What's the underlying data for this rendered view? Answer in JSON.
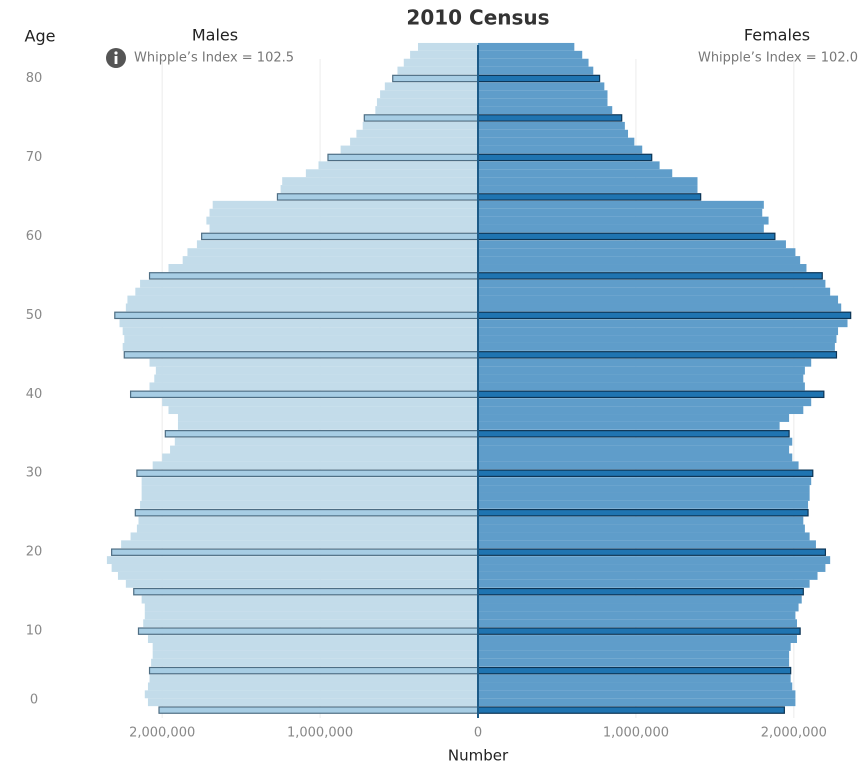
{
  "chart_data": {
    "type": "pyramid",
    "title": "2010 Census",
    "y_label": "Age",
    "x_label": "Number",
    "annotations": [
      "Whipple’s Index = 102.5",
      "Whipple’s Index = 102.0"
    ],
    "categories": [
      0,
      1,
      2,
      3,
      4,
      5,
      6,
      7,
      8,
      9,
      10,
      11,
      12,
      13,
      14,
      15,
      16,
      17,
      18,
      19,
      20,
      21,
      22,
      23,
      24,
      25,
      26,
      27,
      28,
      29,
      30,
      31,
      32,
      33,
      34,
      35,
      36,
      37,
      38,
      39,
      40,
      41,
      42,
      43,
      44,
      45,
      46,
      47,
      48,
      49,
      50,
      51,
      52,
      53,
      54,
      55,
      56,
      57,
      58,
      59,
      60,
      61,
      62,
      63,
      64,
      65,
      66,
      67,
      68,
      69,
      70,
      71,
      72,
      73,
      74,
      75,
      76,
      77,
      78,
      79,
      80,
      81,
      82,
      83,
      84
    ],
    "series": [
      {
        "name": "Males",
        "color": "#c3dcea",
        "highlight_color": "#a7cde4",
        "side": "left",
        "values": [
          2020000,
          2090000,
          2110000,
          2090000,
          2080000,
          2080000,
          2070000,
          2060000,
          2060000,
          2090000,
          2150000,
          2120000,
          2110000,
          2110000,
          2130000,
          2180000,
          2230000,
          2280000,
          2320000,
          2350000,
          2320000,
          2260000,
          2200000,
          2160000,
          2150000,
          2170000,
          2140000,
          2130000,
          2130000,
          2130000,
          2160000,
          2060000,
          2000000,
          1950000,
          1920000,
          1980000,
          1900000,
          1900000,
          1960000,
          2000000,
          2200000,
          2080000,
          2050000,
          2040000,
          2080000,
          2240000,
          2250000,
          2240000,
          2250000,
          2270000,
          2300000,
          2230000,
          2220000,
          2170000,
          2140000,
          2080000,
          1960000,
          1870000,
          1840000,
          1780000,
          1750000,
          1700000,
          1720000,
          1700000,
          1680000,
          1270000,
          1250000,
          1240000,
          1090000,
          1010000,
          950000,
          870000,
          810000,
          770000,
          730000,
          720000,
          650000,
          640000,
          620000,
          590000,
          540000,
          510000,
          470000,
          430000,
          380000
        ]
      },
      {
        "name": "Females",
        "color": "#5f9dca",
        "highlight_color": "#1f74b1",
        "side": "right",
        "values": [
          1940000,
          2010000,
          2010000,
          1990000,
          1980000,
          1980000,
          1970000,
          1970000,
          1980000,
          2020000,
          2040000,
          2020000,
          2010000,
          2030000,
          2050000,
          2060000,
          2100000,
          2150000,
          2200000,
          2230000,
          2200000,
          2140000,
          2100000,
          2070000,
          2060000,
          2090000,
          2090000,
          2100000,
          2100000,
          2110000,
          2120000,
          2030000,
          1990000,
          1970000,
          1990000,
          1970000,
          1910000,
          1970000,
          2060000,
          2110000,
          2190000,
          2070000,
          2060000,
          2070000,
          2110000,
          2270000,
          2260000,
          2270000,
          2280000,
          2340000,
          2360000,
          2300000,
          2280000,
          2230000,
          2200000,
          2180000,
          2080000,
          2040000,
          2010000,
          1950000,
          1880000,
          1810000,
          1840000,
          1800000,
          1810000,
          1410000,
          1390000,
          1390000,
          1230000,
          1150000,
          1100000,
          1040000,
          990000,
          950000,
          930000,
          910000,
          850000,
          820000,
          820000,
          800000,
          770000,
          730000,
          700000,
          660000,
          610000
        ]
      }
    ],
    "xlim": [
      -2400000,
      2400000
    ],
    "xticks": [
      {
        "value": -2000000,
        "label": "2,000,000"
      },
      {
        "value": -1000000,
        "label": "1,000,000"
      },
      0,
      {
        "value": 1000000,
        "label": "1,000,000"
      },
      {
        "value": 2000000,
        "label": "2,000,000"
      }
    ],
    "ylim": [
      -1,
      85
    ],
    "yticks": [
      0,
      10,
      20,
      30,
      40,
      50,
      60,
      70,
      80
    ],
    "grid": true
  }
}
